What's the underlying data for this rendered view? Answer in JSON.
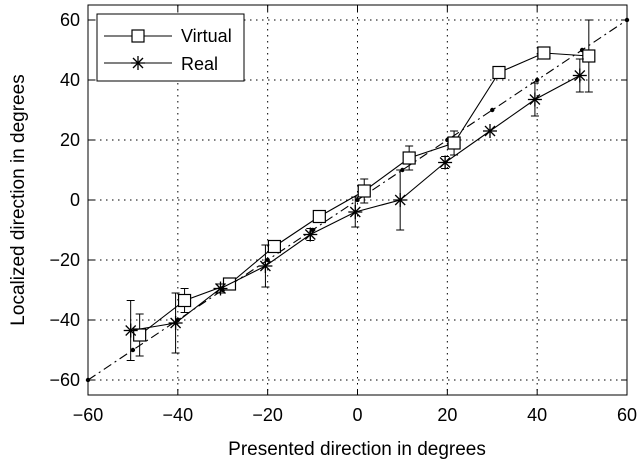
{
  "chart_data": {
    "type": "line",
    "title": "",
    "xlabel": "Presented direction in degrees",
    "ylabel": "Localized direction in degrees",
    "xlim": [
      -60,
      60
    ],
    "ylim": [
      -65,
      65
    ],
    "xticks": [
      -60,
      -40,
      -20,
      0,
      20,
      40,
      60
    ],
    "yticks": [
      -60,
      -40,
      -20,
      0,
      20,
      40,
      60
    ],
    "xtick_labels": [
      "−60",
      "−40",
      "−20",
      "0",
      "20",
      "40",
      "60"
    ],
    "ytick_labels": [
      "−60",
      "−40",
      "−20",
      "0",
      "20",
      "40",
      "60"
    ],
    "grid": true,
    "legend_position": "top-left",
    "series": [
      {
        "name": "Virtual",
        "marker": "square",
        "color": "#000000",
        "x": [
          -48.5,
          -38.5,
          -28.5,
          -18.5,
          -8.5,
          1.5,
          11.5,
          21.5,
          31.5,
          41.5,
          51.5
        ],
        "y": [
          -45,
          -33.5,
          -28,
          -15.5,
          -5.5,
          3,
          14,
          19,
          42.5,
          49,
          48
        ],
        "err": [
          7,
          4,
          2,
          1.5,
          2,
          4,
          4,
          4,
          2,
          2,
          12
        ]
      },
      {
        "name": "Real",
        "marker": "asterisk",
        "color": "#000000",
        "x": [
          -50.5,
          -40.5,
          -30.5,
          -20.5,
          -10.5,
          -0.5,
          9.5,
          19.5,
          29.5,
          39.5,
          49.5
        ],
        "y": [
          -43.5,
          -41,
          -29.5,
          -22,
          -11.5,
          -4,
          0,
          12.5,
          23,
          33.5,
          41.5
        ],
        "err": [
          10,
          10,
          1.5,
          7,
          2,
          5,
          10,
          2,
          0,
          5.5,
          5.5
        ]
      },
      {
        "name": "",
        "marker": "dot",
        "line": "dash-dot",
        "color": "#000000",
        "x": [
          -60,
          -50,
          -40,
          -30,
          -20,
          -10,
          0,
          10,
          20,
          30,
          40,
          50,
          60
        ],
        "y": [
          -60,
          -50,
          -40,
          -30,
          -20,
          -10,
          0,
          10,
          20,
          30,
          40,
          50,
          60
        ]
      }
    ]
  }
}
